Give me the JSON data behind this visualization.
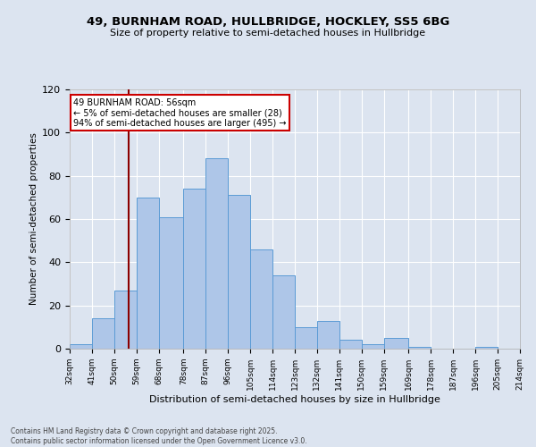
{
  "title1": "49, BURNHAM ROAD, HULLBRIDGE, HOCKLEY, SS5 6BG",
  "title2": "Size of property relative to semi-detached houses in Hullbridge",
  "xlabel": "Distribution of semi-detached houses by size in Hullbridge",
  "ylabel": "Number of semi-detached properties",
  "bar_color": "#aec6e8",
  "bar_edge_color": "#5b9bd5",
  "bg_color": "#dce4f0",
  "annotation_text": "49 BURNHAM ROAD: 56sqm\n← 5% of semi-detached houses are smaller (28)\n94% of semi-detached houses are larger (495) →",
  "vline_x": 56,
  "vline_color": "#8b0000",
  "bin_edges": [
    32,
    41,
    50,
    59,
    68,
    78,
    87,
    96,
    105,
    114,
    123,
    132,
    141,
    150,
    159,
    169,
    178,
    187,
    196,
    205,
    214
  ],
  "bin_labels": [
    "32sqm",
    "41sqm",
    "50sqm",
    "59sqm",
    "68sqm",
    "78sqm",
    "87sqm",
    "96sqm",
    "105sqm",
    "114sqm",
    "123sqm",
    "132sqm",
    "141sqm",
    "150sqm",
    "159sqm",
    "169sqm",
    "178sqm",
    "187sqm",
    "196sqm",
    "205sqm",
    "214sqm"
  ],
  "bar_heights": [
    2,
    14,
    27,
    70,
    61,
    74,
    88,
    71,
    46,
    34,
    10,
    13,
    4,
    2,
    5,
    1,
    0,
    0,
    1,
    0
  ],
  "ylim": [
    0,
    120
  ],
  "yticks": [
    0,
    20,
    40,
    60,
    80,
    100,
    120
  ],
  "footer": "Contains HM Land Registry data © Crown copyright and database right 2025.\nContains public sector information licensed under the Open Government Licence v3.0.",
  "annotation_box_color": "#ffffff",
  "annotation_box_edge": "#cc0000",
  "grid_color": "#ffffff",
  "title1_fontsize": 9.5,
  "title2_fontsize": 8.5
}
